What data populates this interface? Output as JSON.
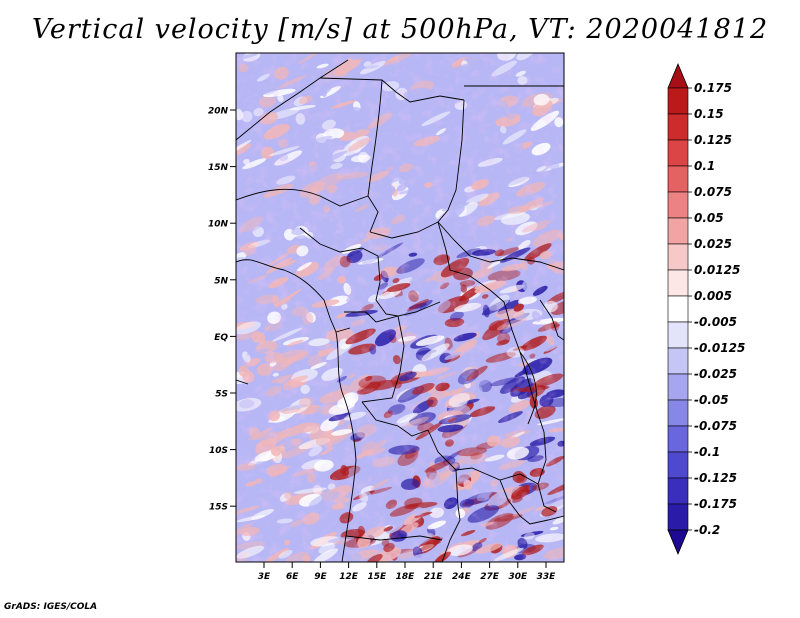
{
  "title": "Vertical velocity [m/s] at 500hPa, VT: 2020041812",
  "footer": "GrADS: IGES/COLA",
  "map": {
    "lat_labels": [
      "20N",
      "15N",
      "10N",
      "5N",
      "EQ",
      "5S",
      "10S",
      "15S"
    ],
    "lon_labels": [
      "3E",
      "6E",
      "9E",
      "12E",
      "15E",
      "18E",
      "21E",
      "24E",
      "27E",
      "30E",
      "33E"
    ],
    "colors": {
      "strong_up": "#b01c1c",
      "weak_up": "#f2b6b6",
      "neutral": "#ffffff",
      "weak_down": "#b7b7f5",
      "strong_down": "#2b1fa8"
    }
  },
  "colorbar": {
    "levels": [
      "0.175",
      "0.15",
      "0.125",
      "0.1",
      "0.075",
      "0.05",
      "0.025",
      "0.0125",
      "0.005",
      "-0.005",
      "-0.0125",
      "-0.025",
      "-0.05",
      "-0.075",
      "-0.1",
      "-0.125",
      "-0.175",
      "-0.2"
    ],
    "colors": [
      "#a50f15",
      "#bb1a1a",
      "#cc2c2c",
      "#db4545",
      "#e46262",
      "#ec8282",
      "#f2a3a3",
      "#f7c8c8",
      "#fde6e6",
      "#ffffff",
      "#e3e3fb",
      "#c6c6f6",
      "#a6a6f0",
      "#8787e8",
      "#6a66dd",
      "#4e49cf",
      "#3a2fbd",
      "#2a1ca8",
      "#1d0a90"
    ]
  }
}
